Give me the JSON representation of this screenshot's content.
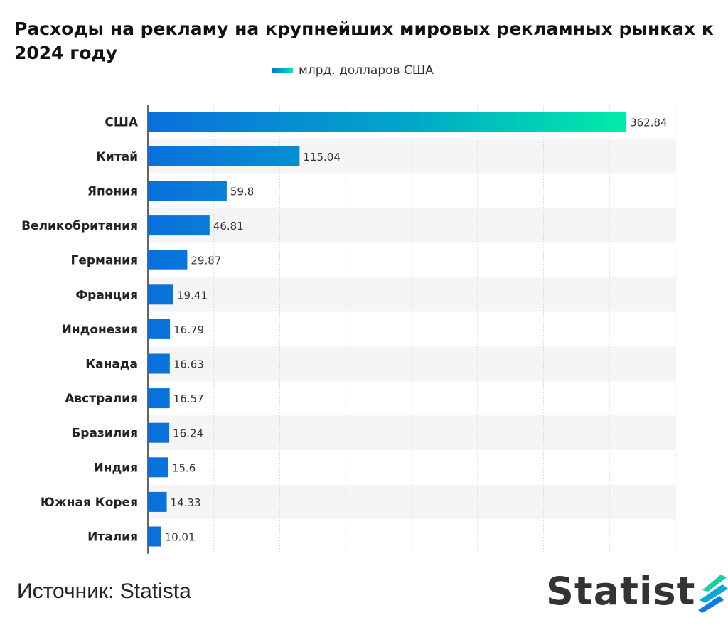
{
  "chart_data": {
    "type": "bar",
    "orientation": "horizontal",
    "title": "Расходы на рекламу на крупнейших мировых рекламных рынках к 2024 году",
    "legend": "млрд. долларов США",
    "categories": [
      "США",
      "Китай",
      "Япония",
      "Великобритания",
      "Германия",
      "Франция",
      "Индонезия",
      "Канада",
      "Австралия",
      "Бразилия",
      "Индия",
      "Южная Корея",
      "Италия"
    ],
    "values": [
      362.84,
      115.04,
      59.8,
      46.81,
      29.87,
      19.41,
      16.79,
      16.63,
      16.57,
      16.24,
      15.6,
      14.33,
      10.01
    ],
    "xlim": [
      0,
      400
    ],
    "grid_step": 50,
    "grid": true,
    "colors": {
      "start": "#0a6fdc",
      "end": "#00e8a8"
    }
  },
  "source": "Источник: Statista",
  "logo_text": "Statist"
}
